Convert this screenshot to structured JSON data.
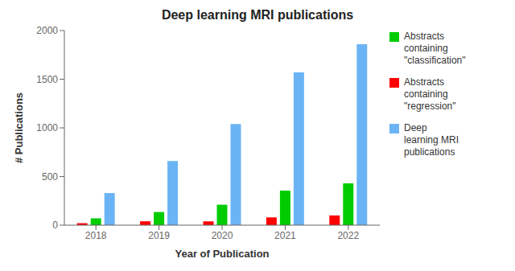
{
  "chart_data": {
    "type": "bar",
    "title": "Deep learning MRI publications",
    "x_label": "Year of Publication",
    "y_label": "# Publications",
    "categories": [
      "2018",
      "2019",
      "2020",
      "2021",
      "2022"
    ],
    "series": [
      {
        "name": "Abstracts\ncontaining\n\"regression\"",
        "color": "#ff0000",
        "values": [
          20,
          40,
          40,
          80,
          100
        ]
      },
      {
        "name": "Abstracts\ncontaining\n\"classification\"",
        "color": "#00cc00",
        "values": [
          70,
          135,
          210,
          355,
          430
        ]
      },
      {
        "name": "Deep\nlearning MRI\npublications",
        "color": "#6ab4f5",
        "values": [
          330,
          660,
          1040,
          1570,
          1860
        ]
      }
    ],
    "ylim": [
      0,
      2000
    ],
    "yticks": [
      0,
      500,
      1000,
      1500,
      2000
    ],
    "grid": false,
    "legend": "right"
  }
}
